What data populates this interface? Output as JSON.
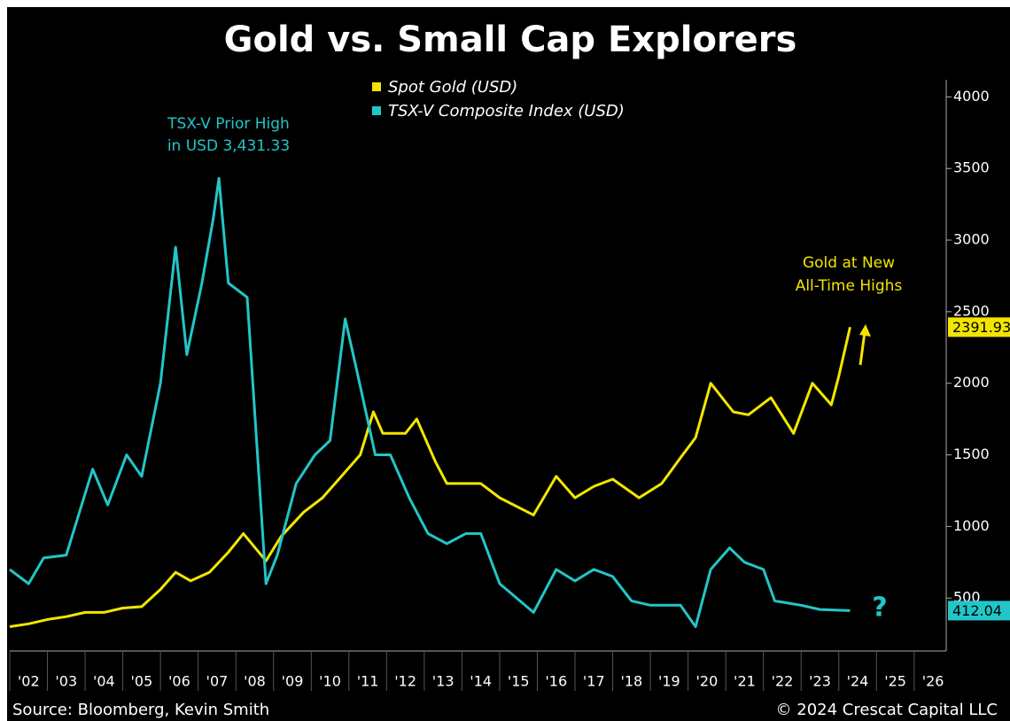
{
  "chart_data": {
    "type": "line",
    "title": "Gold vs. Small Cap Explorers",
    "source": "Source: Bloomberg, Kevin Smith",
    "copyright": "© 2024 Crescat Capital LLC",
    "annotations": [
      "TSX-V Prior High",
      "in USD 3,431.33",
      "Gold at New",
      "All-Time Highs",
      "?"
    ],
    "series": [
      {
        "name": "Spot Gold (USD)",
        "color": "#f2e600",
        "x": [
          2002,
          2002.5,
          2003,
          2003.5,
          2004,
          2004.5,
          2005,
          2005.5,
          2006,
          2006.4,
          2006.8,
          2007.3,
          2007.8,
          2008.2,
          2008.8,
          2009.2,
          2009.8,
          2010.3,
          2010.9,
          2011.3,
          2011.65,
          2011.9,
          2012.5,
          2012.8,
          2013.3,
          2013.6,
          2014,
          2014.5,
          2015,
          2015.9,
          2016.5,
          2017,
          2017.5,
          2018,
          2018.7,
          2019.3,
          2019.8,
          2020.2,
          2020.6,
          2021.2,
          2021.6,
          2022.2,
          2022.8,
          2023.3,
          2023.8,
          2024,
          2024.3
        ],
        "values": [
          300,
          320,
          350,
          370,
          400,
          400,
          430,
          440,
          560,
          680,
          620,
          680,
          820,
          950,
          760,
          930,
          1100,
          1200,
          1380,
          1500,
          1800,
          1650,
          1650,
          1750,
          1450,
          1300,
          1300,
          1300,
          1200,
          1080,
          1350,
          1200,
          1280,
          1330,
          1200,
          1300,
          1480,
          1620,
          2000,
          1800,
          1780,
          1900,
          1650,
          2000,
          1850,
          2050,
          2391.93
        ]
      },
      {
        "name": "TSX-V Composite Index (USD)",
        "color": "#22c6c8",
        "x": [
          2002,
          2002.5,
          2002.9,
          2003.5,
          2004.2,
          2004.6,
          2005.1,
          2005.5,
          2006,
          2006.4,
          2006.7,
          2007.1,
          2007.4,
          2007.55,
          2007.8,
          2008.3,
          2008.8,
          2009.1,
          2009.6,
          2010.1,
          2010.5,
          2010.9,
          2011.2,
          2011.7,
          2012.1,
          2012.6,
          2013.1,
          2013.6,
          2014.1,
          2014.5,
          2015,
          2015.9,
          2016.5,
          2017,
          2017.5,
          2018,
          2018.5,
          2019,
          2019.8,
          2020.2,
          2020.6,
          2021.1,
          2021.5,
          2022,
          2022.3,
          2023,
          2023.5,
          2024.3
        ],
        "values": [
          700,
          600,
          780,
          800,
          1400,
          1150,
          1500,
          1350,
          2000,
          2950,
          2200,
          2700,
          3150,
          3431.33,
          2700,
          2600,
          600,
          800,
          1300,
          1500,
          1600,
          2450,
          2100,
          1500,
          1500,
          1200,
          950,
          880,
          950,
          950,
          600,
          400,
          700,
          620,
          700,
          650,
          480,
          450,
          450,
          300,
          700,
          850,
          750,
          700,
          480,
          450,
          420,
          412.04
        ]
      }
    ],
    "xlim": [
      2002,
      2026.85
    ],
    "xticks": [
      {
        "value": 2002,
        "label": "'02"
      },
      {
        "value": 2003,
        "label": "'03"
      },
      {
        "value": 2004,
        "label": "'04"
      },
      {
        "value": 2005,
        "label": "'05"
      },
      {
        "value": 2006,
        "label": "'06"
      },
      {
        "value": 2007,
        "label": "'07"
      },
      {
        "value": 2008,
        "label": "'08"
      },
      {
        "value": 2009,
        "label": "'09"
      },
      {
        "value": 2010,
        "label": "'10"
      },
      {
        "value": 2011,
        "label": "'11"
      },
      {
        "value": 2012,
        "label": "'12"
      },
      {
        "value": 2013,
        "label": "'13"
      },
      {
        "value": 2014,
        "label": "'14"
      },
      {
        "value": 2015,
        "label": "'15"
      },
      {
        "value": 2016,
        "label": "'16"
      },
      {
        "value": 2017,
        "label": "'17"
      },
      {
        "value": 2018,
        "label": "'18"
      },
      {
        "value": 2019,
        "label": "'19"
      },
      {
        "value": 2020,
        "label": "'20"
      },
      {
        "value": 2021,
        "label": "'21"
      },
      {
        "value": 2022,
        "label": "'22"
      },
      {
        "value": 2023,
        "label": "'23"
      },
      {
        "value": 2024,
        "label": "'24"
      },
      {
        "value": 2025,
        "label": "'25"
      },
      {
        "value": 2026,
        "label": "'26"
      }
    ],
    "ylim": [
      130,
      4120
    ],
    "yticks": [
      500,
      1000,
      1500,
      2000,
      2500,
      3000,
      3500,
      4000
    ]
  }
}
